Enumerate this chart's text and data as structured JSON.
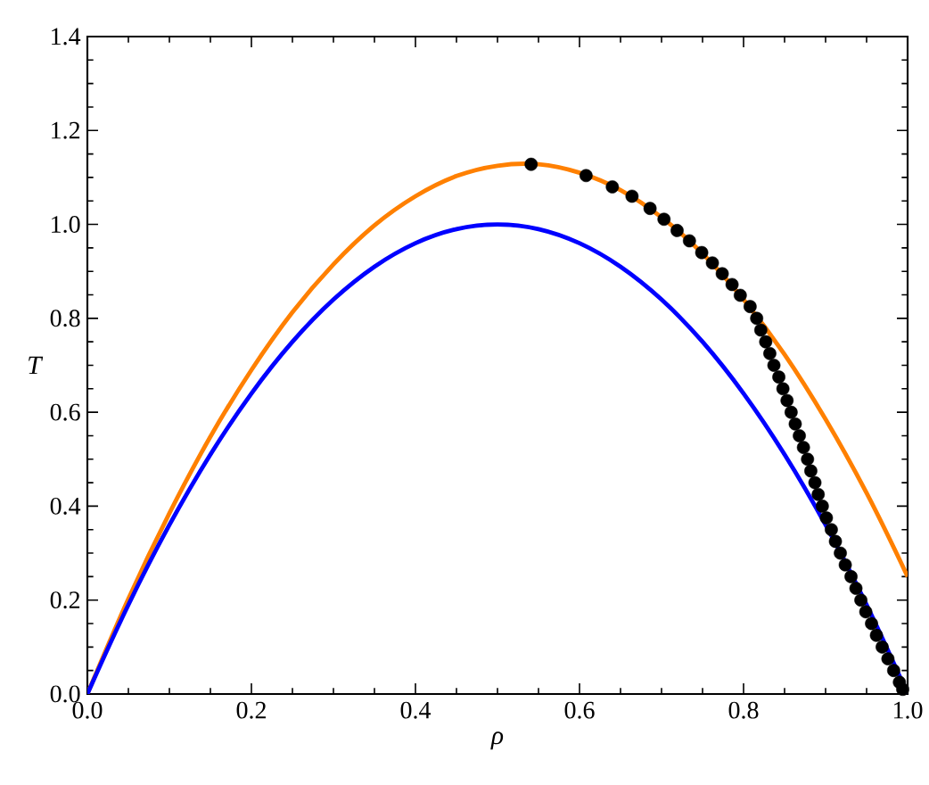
{
  "chart_data": {
    "type": "line",
    "marker": "circle",
    "xlabel": "ρ",
    "ylabel": "T",
    "xlim": [
      0,
      1
    ],
    "ylim": [
      0,
      1.4
    ],
    "xticks": [
      {
        "value": 0,
        "label": "0.0"
      },
      {
        "value": 0.2,
        "label": "0.2"
      },
      {
        "value": 0.4,
        "label": "0.4"
      },
      {
        "value": 0.6,
        "label": "0.6"
      },
      {
        "value": 0.8,
        "label": "0.8"
      },
      {
        "value": 1,
        "label": "1.0"
      }
    ],
    "yticks": [
      {
        "value": 0,
        "label": "0.0"
      },
      {
        "value": 0.2,
        "label": "0.2"
      },
      {
        "value": 0.4,
        "label": "0.4"
      },
      {
        "value": 0.6,
        "label": "0.6"
      },
      {
        "value": 0.8,
        "label": "0.8"
      },
      {
        "value": 1,
        "label": "1.0"
      },
      {
        "value": 1.2,
        "label": "1.2"
      },
      {
        "value": 1.4,
        "label": "1.4"
      }
    ],
    "series": [
      {
        "color": "#ff8000",
        "marker": "none",
        "x": [
          0,
          0.05,
          0.1,
          0.15,
          0.2,
          0.25,
          0.3,
          0.35,
          0.4,
          0.45,
          0.5,
          0.55,
          0.6,
          0.65,
          0.7,
          0.75,
          0.8,
          0.85,
          0.9,
          0.95,
          1
        ],
        "values": [
          0,
          0.203,
          0.385,
          0.548,
          0.69,
          0.813,
          0.915,
          0.998,
          1.06,
          1.103,
          1.125,
          1.128,
          1.11,
          1.073,
          1.015,
          0.938,
          0.84,
          0.723,
          0.585,
          0.428,
          0.25
        ]
      },
      {
        "color": "#0000ff",
        "marker": "none",
        "x": [
          0,
          0.05,
          0.1,
          0.15,
          0.2,
          0.25,
          0.3,
          0.35,
          0.4,
          0.45,
          0.5,
          0.55,
          0.6,
          0.65,
          0.7,
          0.75,
          0.8,
          0.85,
          0.9,
          0.95,
          1
        ],
        "values": [
          0,
          0.19,
          0.36,
          0.51,
          0.64,
          0.75,
          0.84,
          0.91,
          0.96,
          0.99,
          1.0,
          0.99,
          0.96,
          0.91,
          0.84,
          0.75,
          0.64,
          0.51,
          0.36,
          0.19,
          0
        ]
      },
      {
        "type": "scatter",
        "color": "#000000",
        "x": [
          0.541,
          0.608,
          0.64,
          0.664,
          0.686,
          0.703,
          0.719,
          0.734,
          0.749,
          0.762,
          0.774,
          0.786,
          0.796,
          0.808,
          0.816,
          0.821,
          0.827,
          0.832,
          0.837,
          0.843,
          0.848,
          0.853,
          0.858,
          0.863,
          0.868,
          0.873,
          0.878,
          0.882,
          0.887,
          0.891,
          0.896,
          0.901,
          0.907,
          0.912,
          0.918,
          0.924,
          0.931,
          0.937,
          0.943,
          0.949,
          0.956,
          0.962,
          0.969,
          0.976,
          0.983,
          0.99,
          0.994
        ],
        "values": [
          1.128,
          1.104,
          1.08,
          1.06,
          1.034,
          1.011,
          0.987,
          0.965,
          0.94,
          0.918,
          0.895,
          0.872,
          0.849,
          0.825,
          0.8,
          0.775,
          0.75,
          0.725,
          0.7,
          0.675,
          0.65,
          0.625,
          0.6,
          0.575,
          0.55,
          0.525,
          0.5,
          0.475,
          0.45,
          0.425,
          0.4,
          0.375,
          0.35,
          0.325,
          0.3,
          0.275,
          0.25,
          0.225,
          0.2,
          0.175,
          0.15,
          0.125,
          0.1,
          0.075,
          0.05,
          0.025,
          0.01
        ]
      }
    ]
  }
}
